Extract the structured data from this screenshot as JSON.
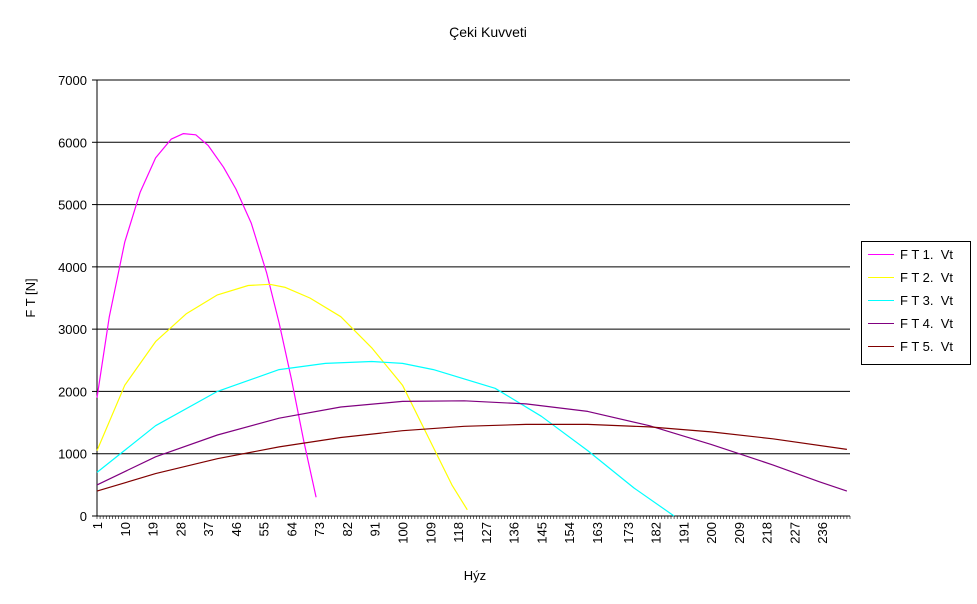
{
  "chart_data": {
    "type": "line",
    "title": "Çeki Kuvveti",
    "xlabel": "Hýz",
    "ylabel": "F T [N]",
    "ylim": [
      0,
      7000
    ],
    "yticks": [
      0,
      1000,
      2000,
      3000,
      4000,
      5000,
      6000,
      7000
    ],
    "xlim": [
      1,
      245
    ],
    "x_tick_labels": [
      "1",
      "10",
      "19",
      "28",
      "37",
      "46",
      "55",
      "64",
      "73",
      "82",
      "91",
      "100",
      "109",
      "118",
      "127",
      "136",
      "145",
      "154",
      "163",
      "173",
      "182",
      "191",
      "200",
      "209",
      "218",
      "227",
      "236"
    ],
    "grid": "horizontal",
    "legend_position": "right",
    "series": [
      {
        "name": "F T 1.  Vt",
        "color": "#ff00ff",
        "x": [
          1,
          5,
          10,
          15,
          20,
          25,
          29,
          33,
          37,
          42,
          46,
          51,
          56,
          60,
          64,
          68,
          72
        ],
        "y": [
          1900,
          3200,
          4400,
          5200,
          5750,
          6050,
          6140,
          6120,
          5950,
          5600,
          5250,
          4700,
          3900,
          3100,
          2200,
          1200,
          300
        ]
      },
      {
        "name": "F T 2.  Vt",
        "color": "#ffff00",
        "x": [
          1,
          10,
          20,
          30,
          40,
          50,
          57,
          62,
          70,
          80,
          90,
          100,
          110,
          116,
          121
        ],
        "y": [
          1050,
          2100,
          2800,
          3250,
          3550,
          3700,
          3720,
          3670,
          3500,
          3200,
          2700,
          2100,
          1100,
          500,
          100
        ]
      },
      {
        "name": "F T 3.  Vt",
        "color": "#00ffff",
        "x": [
          1,
          20,
          40,
          60,
          75,
          90,
          100,
          110,
          130,
          145,
          160,
          175,
          188
        ],
        "y": [
          700,
          1450,
          2000,
          2350,
          2450,
          2480,
          2450,
          2350,
          2050,
          1600,
          1050,
          450,
          0
        ]
      },
      {
        "name": "F T 4.  Vt",
        "color": "#800080",
        "x": [
          1,
          20,
          40,
          60,
          80,
          100,
          120,
          140,
          160,
          180,
          200,
          220,
          235,
          244
        ],
        "y": [
          500,
          950,
          1300,
          1570,
          1750,
          1840,
          1850,
          1800,
          1680,
          1450,
          1150,
          820,
          550,
          400
        ]
      },
      {
        "name": "F T 5.  Vt",
        "color": "#800000",
        "x": [
          1,
          20,
          40,
          60,
          80,
          100,
          120,
          140,
          160,
          180,
          200,
          220,
          244
        ],
        "y": [
          400,
          680,
          920,
          1110,
          1260,
          1370,
          1440,
          1470,
          1470,
          1430,
          1350,
          1240,
          1070
        ]
      }
    ]
  }
}
